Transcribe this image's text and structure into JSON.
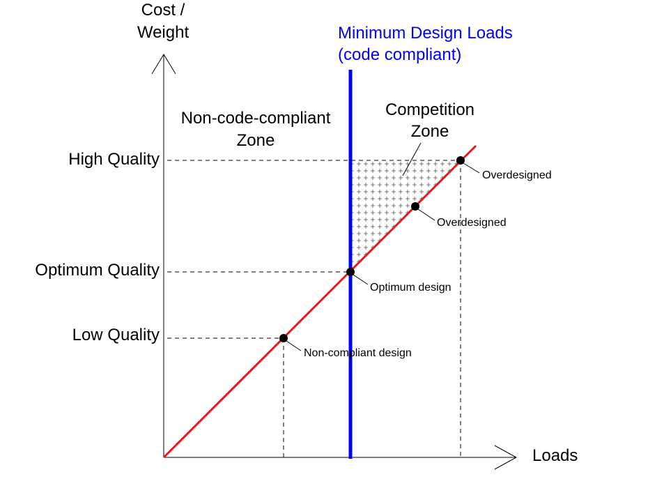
{
  "axes": {
    "y_label_line1": "Cost /",
    "y_label_line2": "Weight",
    "x_label": "Loads"
  },
  "quality_levels": {
    "high": "High Quality",
    "optimum": "Optimum Quality",
    "low": "Low Quality"
  },
  "min_design_loads": {
    "line1": "Minimum Design Loads",
    "line2": "(code compliant)"
  },
  "zones": {
    "non_compliant_line1": "Non-code-compliant",
    "non_compliant_line2": "Zone",
    "competition_line1": "Competition",
    "competition_line2": "Zone"
  },
  "points": {
    "overdesigned_high": "Overdesigned",
    "overdesigned_mid": "Overdesigned",
    "optimum": "Optimum design",
    "non_compliant": "Non-compliant design"
  },
  "colors": {
    "design_line": "#e8191c",
    "min_loads_line": "#0000ff",
    "min_loads_text": "#0000ff"
  }
}
